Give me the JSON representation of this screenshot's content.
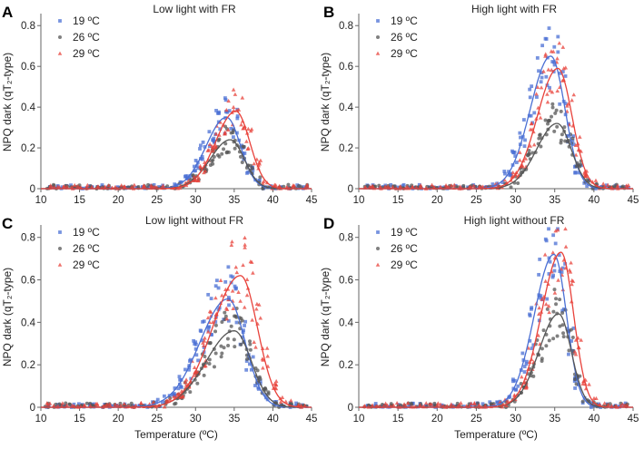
{
  "figure": {
    "ylabel": "NPQ dark (qT₂-type)",
    "xlabel": "Temperature (ºC)"
  },
  "colors": {
    "19": "#4a6fd4",
    "26": "#555555",
    "29": "#e8413a",
    "axis": "#666666"
  },
  "chart_data": [
    {
      "panel": "A",
      "type": "scatter",
      "title": "Low light with FR",
      "xlabel": "Temperature (ºC)",
      "ylabel": "NPQ dark (qT₂-type)",
      "xlim": [
        10,
        45
      ],
      "ylim": [
        0,
        0.85
      ],
      "xticks": [
        10,
        15,
        20,
        25,
        30,
        35,
        40,
        45
      ],
      "yticks": [
        0,
        0.2,
        0.4,
        0.6,
        0.8
      ],
      "ytick_labels": [
        "0",
        "0.2",
        "0.4",
        "0.6",
        "0.8"
      ],
      "legend": [
        "19 ºC",
        "26 ºC",
        "29 ºC"
      ],
      "series": [
        {
          "name": "19 ºC",
          "color_key": "19",
          "marker": "square",
          "fit": {
            "peak": 0.35,
            "center": 34.0,
            "width_left": 2.6,
            "width_right": 1.8
          }
        },
        {
          "name": "26 ºC",
          "color_key": "26",
          "marker": "circle",
          "fit": {
            "peak": 0.24,
            "center": 34.5,
            "width_left": 2.6,
            "width_right": 1.8
          }
        },
        {
          "name": "29 ºC",
          "color_key": "29",
          "marker": "triangle",
          "fit": {
            "peak": 0.38,
            "center": 35.2,
            "width_left": 2.6,
            "width_right": 1.8
          }
        }
      ]
    },
    {
      "panel": "B",
      "type": "scatter",
      "title": "High light with FR",
      "xlabel": "Temperature (ºC)",
      "ylabel": "NPQ dark (qT₂-type)",
      "xlim": [
        10,
        45
      ],
      "ylim": [
        0,
        0.85
      ],
      "xticks": [
        10,
        15,
        20,
        25,
        30,
        35,
        40,
        45
      ],
      "yticks": [
        0,
        0.2,
        0.4,
        0.6,
        0.8
      ],
      "ytick_labels": [
        "0",
        "0.2",
        "0.4",
        "0.6",
        "0.8"
      ],
      "legend": [
        "19 ºC",
        "26 ºC",
        "29 ºC"
      ],
      "series": [
        {
          "name": "19 ºC",
          "color_key": "19",
          "marker": "square",
          "fit": {
            "peak": 0.65,
            "center": 34.5,
            "width_left": 2.6,
            "width_right": 1.8
          }
        },
        {
          "name": "26 ºC",
          "color_key": "26",
          "marker": "circle",
          "fit": {
            "peak": 0.32,
            "center": 35.3,
            "width_left": 2.6,
            "width_right": 1.8
          }
        },
        {
          "name": "29 ºC",
          "color_key": "29",
          "marker": "triangle",
          "fit": {
            "peak": 0.59,
            "center": 35.4,
            "width_left": 2.6,
            "width_right": 1.8
          }
        }
      ]
    },
    {
      "panel": "C",
      "type": "scatter",
      "title": "Low light without FR",
      "xlabel": "Temperature (ºC)",
      "ylabel": "NPQ dark (qT₂-type)",
      "xlim": [
        10,
        45
      ],
      "ylim": [
        0,
        0.85
      ],
      "xticks": [
        10,
        15,
        20,
        25,
        30,
        35,
        40,
        45
      ],
      "yticks": [
        0,
        0.2,
        0.4,
        0.6,
        0.8
      ],
      "ytick_labels": [
        "0",
        "0.2",
        "0.4",
        "0.6",
        "0.8"
      ],
      "legend": [
        "19 ºC",
        "26 ºC",
        "29 ºC"
      ],
      "series": [
        {
          "name": "19 ºC",
          "color_key": "19",
          "marker": "square",
          "fit": {
            "peak": 0.51,
            "center": 34.2,
            "width_left": 3.6,
            "width_right": 2.2
          }
        },
        {
          "name": "26 ºC",
          "color_key": "26",
          "marker": "circle",
          "fit": {
            "peak": 0.36,
            "center": 35.0,
            "width_left": 3.6,
            "width_right": 2.2
          }
        },
        {
          "name": "29 ºC",
          "color_key": "29",
          "marker": "triangle",
          "fit": {
            "peak": 0.62,
            "center": 35.8,
            "width_left": 3.6,
            "width_right": 2.2
          }
        }
      ]
    },
    {
      "panel": "D",
      "type": "scatter",
      "title": "High light without FR",
      "xlabel": "Temperature (ºC)",
      "ylabel": "NPQ dark (qT₂-type)",
      "xlim": [
        10,
        45
      ],
      "ylim": [
        0,
        0.85
      ],
      "xticks": [
        10,
        15,
        20,
        25,
        30,
        35,
        40,
        45
      ],
      "yticks": [
        0,
        0.2,
        0.4,
        0.6,
        0.8
      ],
      "ytick_labels": [
        "0",
        "0.2",
        "0.4",
        "0.6",
        "0.8"
      ],
      "legend": [
        "19 ºC",
        "26 ºC",
        "29 ºC"
      ],
      "series": [
        {
          "name": "19 ºC",
          "color_key": "19",
          "marker": "square",
          "fit": {
            "peak": 0.72,
            "center": 34.9,
            "width_left": 2.5,
            "width_right": 1.6
          }
        },
        {
          "name": "26 ºC",
          "color_key": "26",
          "marker": "circle",
          "fit": {
            "peak": 0.44,
            "center": 35.5,
            "width_left": 2.5,
            "width_right": 1.6
          }
        },
        {
          "name": "29 ºC",
          "color_key": "29",
          "marker": "triangle",
          "fit": {
            "peak": 0.73,
            "center": 35.8,
            "width_left": 2.5,
            "width_right": 1.6
          }
        }
      ]
    }
  ]
}
